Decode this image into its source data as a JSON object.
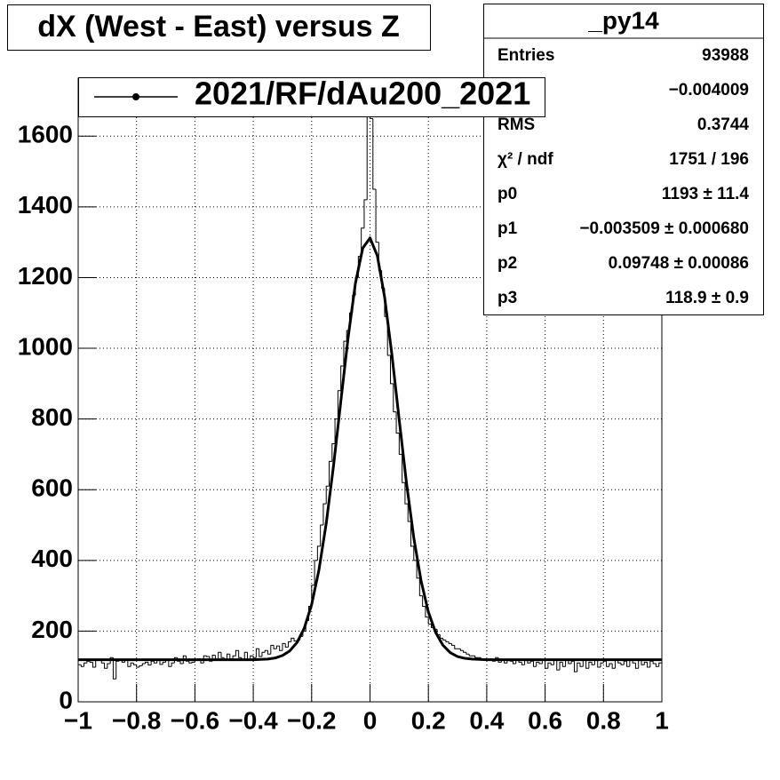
{
  "chart_data": {
    "type": "histogram",
    "title": "dX (West - East) versus Z",
    "series_name": "2021/RF/dAu200_2021",
    "color": "#000000",
    "xlim": [
      -1,
      1
    ],
    "ylim": [
      0,
      1764
    ],
    "xticks": [
      {
        "value": -1,
        "label": "−1"
      },
      {
        "value": -0.8,
        "label": "−0.8"
      },
      {
        "value": -0.6,
        "label": "−0.6"
      },
      {
        "value": -0.4,
        "label": "−0.4"
      },
      {
        "value": -0.2,
        "label": "−0.2"
      },
      0,
      0.2,
      0.4,
      0.6,
      0.8,
      1
    ],
    "yticks": [
      0,
      200,
      400,
      600,
      800,
      1000,
      1200,
      1400,
      1600
    ],
    "grid": true,
    "bins": [
      -1,
      -0.99,
      -0.98,
      -0.97,
      -0.96,
      -0.95,
      -0.94,
      -0.93,
      -0.92,
      -0.91,
      -0.9,
      -0.89,
      -0.88,
      -0.87,
      -0.86,
      -0.85,
      -0.84,
      -0.83,
      -0.82,
      -0.81,
      -0.8,
      -0.79,
      -0.78,
      -0.77,
      -0.76,
      -0.75,
      -0.74,
      -0.73,
      -0.72,
      -0.71,
      -0.7,
      -0.69,
      -0.68,
      -0.67,
      -0.66,
      -0.65,
      -0.64,
      -0.63,
      -0.62,
      -0.61,
      -0.6,
      -0.59,
      -0.58,
      -0.57,
      -0.56,
      -0.55,
      -0.54,
      -0.53,
      -0.52,
      -0.51,
      -0.5,
      -0.49,
      -0.48,
      -0.47,
      -0.46,
      -0.45,
      -0.44,
      -0.43,
      -0.42,
      -0.41,
      -0.4,
      -0.39,
      -0.38,
      -0.37,
      -0.36,
      -0.35,
      -0.34,
      -0.33,
      -0.32,
      -0.31,
      -0.3,
      -0.29,
      -0.28,
      -0.27,
      -0.26,
      -0.25,
      -0.24,
      -0.23,
      -0.22,
      -0.21,
      -0.2,
      -0.19,
      -0.18,
      -0.17,
      -0.16,
      -0.15,
      -0.14,
      -0.13,
      -0.12,
      -0.11,
      -0.1,
      -0.09,
      -0.08,
      -0.07,
      -0.06,
      -0.05,
      -0.04,
      -0.03,
      -0.02,
      -0.01,
      0,
      0.01,
      0.02,
      0.03,
      0.04,
      0.05,
      0.06,
      0.07,
      0.08,
      0.09,
      0.1,
      0.11,
      0.12,
      0.13,
      0.14,
      0.15,
      0.16,
      0.17,
      0.18,
      0.19,
      0.2,
      0.21,
      0.22,
      0.23,
      0.24,
      0.25,
      0.26,
      0.27,
      0.28,
      0.29,
      0.3,
      0.31,
      0.32,
      0.33,
      0.34,
      0.35,
      0.36,
      0.37,
      0.38,
      0.39,
      0.4,
      0.41,
      0.42,
      0.43,
      0.44,
      0.45,
      0.46,
      0.47,
      0.48,
      0.49,
      0.5,
      0.51,
      0.52,
      0.53,
      0.54,
      0.55,
      0.56,
      0.57,
      0.58,
      0.59,
      0.6,
      0.61,
      0.62,
      0.63,
      0.64,
      0.65,
      0.66,
      0.67,
      0.68,
      0.69,
      0.7,
      0.71,
      0.72,
      0.73,
      0.74,
      0.75,
      0.76,
      0.77,
      0.78,
      0.79,
      0.8,
      0.81,
      0.82,
      0.83,
      0.84,
      0.85,
      0.86,
      0.87,
      0.88,
      0.89,
      0.9,
      0.91,
      0.92,
      0.93,
      0.94,
      0.95,
      0.96,
      0.97,
      0.98,
      0.99,
      1
    ],
    "values": [
      105,
      100,
      110,
      115,
      112,
      98,
      120,
      118,
      110,
      95,
      108,
      125,
      65,
      115,
      118,
      112,
      120,
      100,
      110,
      105,
      98,
      102,
      108,
      112,
      104,
      115,
      110,
      118,
      106,
      112,
      120,
      100,
      110,
      125,
      115,
      108,
      130,
      115,
      110,
      112,
      118,
      122,
      110,
      130,
      128,
      115,
      132,
      120,
      140,
      125,
      118,
      135,
      122,
      130,
      145,
      125,
      118,
      140,
      120,
      130,
      125,
      150,
      128,
      140,
      145,
      135,
      160,
      150,
      158,
      145,
      165,
      155,
      170,
      180,
      172,
      175,
      185,
      200,
      230,
      270,
      330,
      400,
      440,
      500,
      560,
      610,
      680,
      730,
      800,
      880,
      950,
      1020,
      1050,
      1100,
      1150,
      1200,
      1260,
      1340,
      1420,
      1680,
      1650,
      1450,
      1300,
      1220,
      1170,
      1090,
      980,
      900,
      820,
      760,
      700,
      620,
      560,
      510,
      440,
      400,
      350,
      300,
      270,
      240,
      220,
      210,
      205,
      190,
      180,
      175,
      170,
      165,
      160,
      150,
      150,
      145,
      140,
      135,
      130,
      130,
      125,
      125,
      120,
      120,
      118,
      122,
      115,
      125,
      112,
      118,
      110,
      120,
      115,
      108,
      118,
      112,
      105,
      120,
      110,
      115,
      100,
      112,
      108,
      120,
      95,
      110,
      105,
      118,
      90,
      112,
      100,
      120,
      108,
      115,
      85,
      110,
      100,
      118,
      95,
      112,
      105,
      120,
      98,
      110,
      115,
      100,
      108,
      95,
      120,
      110,
      105,
      115,
      100,
      118,
      110,
      95,
      120,
      105,
      112,
      98,
      115,
      108,
      100,
      110
    ],
    "fit": {
      "x": [
        -1,
        -0.8,
        -0.6,
        -0.4,
        -0.375,
        -0.35,
        -0.325,
        -0.3,
        -0.275,
        -0.25,
        -0.225,
        -0.2,
        -0.175,
        -0.15,
        -0.125,
        -0.1,
        -0.075,
        -0.05,
        -0.025,
        0,
        0.025,
        0.05,
        0.075,
        0.1,
        0.125,
        0.15,
        0.175,
        0.2,
        0.225,
        0.25,
        0.275,
        0.3,
        0.325,
        0.35,
        0.375,
        0.4,
        0.6,
        0.8,
        1
      ],
      "values": [
        119,
        119,
        119,
        119,
        120,
        121,
        124,
        131,
        144,
        168,
        209,
        275,
        373,
        505,
        668,
        850,
        1030,
        1184,
        1283,
        1312,
        1262,
        1145,
        982,
        798,
        619,
        464,
        342,
        254,
        196,
        160,
        139,
        128,
        123,
        121,
        120,
        119,
        119,
        119,
        119
      ]
    },
    "stats": {
      "title": "_py14",
      "rows": [
        {
          "label": "Entries",
          "value": "93988"
        },
        {
          "value": "−0.004009"
        },
        {
          "label": "RMS",
          "value": "0.3744"
        },
        {
          "label": "χ² / ndf",
          "value": "1751 / 196"
        },
        {
          "label": "p0",
          "value": "1193 ± 11.4"
        },
        {
          "label": "p1",
          "value": "−0.003509 ± 0.000680"
        },
        {
          "label": "p2",
          "value": "0.09748 ± 0.00086"
        },
        {
          "label": "p3",
          "value": "118.9 ± 0.9"
        }
      ]
    }
  }
}
